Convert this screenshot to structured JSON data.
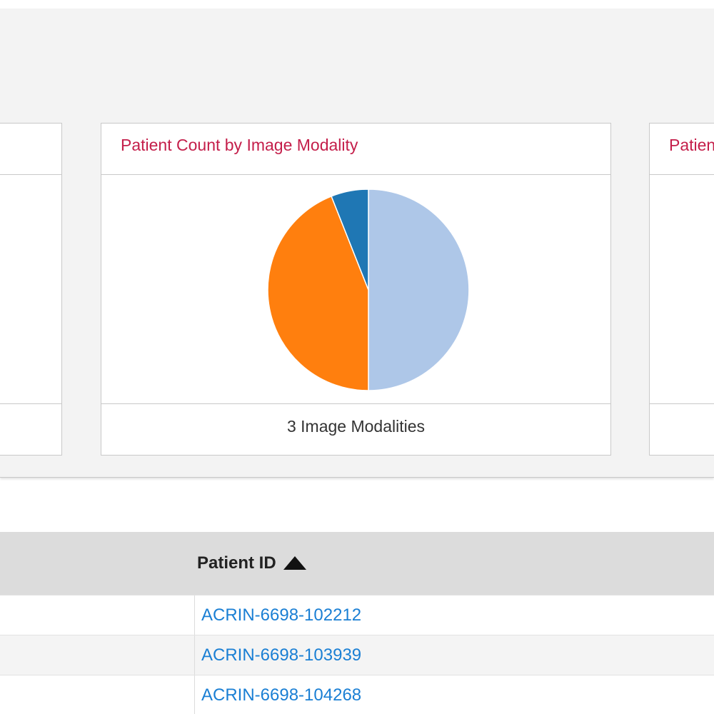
{
  "charts": {
    "center": {
      "title": "Patient Count by Image Modality",
      "footer": "3 Image Modalities"
    },
    "right": {
      "title_partial": "Patien"
    }
  },
  "chart_data": {
    "type": "pie",
    "title": "Patient Count by Image Modality",
    "values": [
      50,
      44,
      6
    ],
    "colors": [
      "#aec7e8",
      "#ff7f0e",
      "#1f77b4"
    ]
  },
  "table": {
    "header": {
      "patient_id": "Patient ID"
    },
    "rows": [
      {
        "patient_id": "ACRIN-6698-102212"
      },
      {
        "patient_id": "ACRIN-6698-103939"
      },
      {
        "patient_id": "ACRIN-6698-104268"
      }
    ]
  },
  "colors": {
    "title_accent": "#c41e4a",
    "link": "#1a7fd4",
    "header_bg": "#dcdcdc"
  },
  "icons": {
    "sort": "sort-ascending-icon"
  }
}
